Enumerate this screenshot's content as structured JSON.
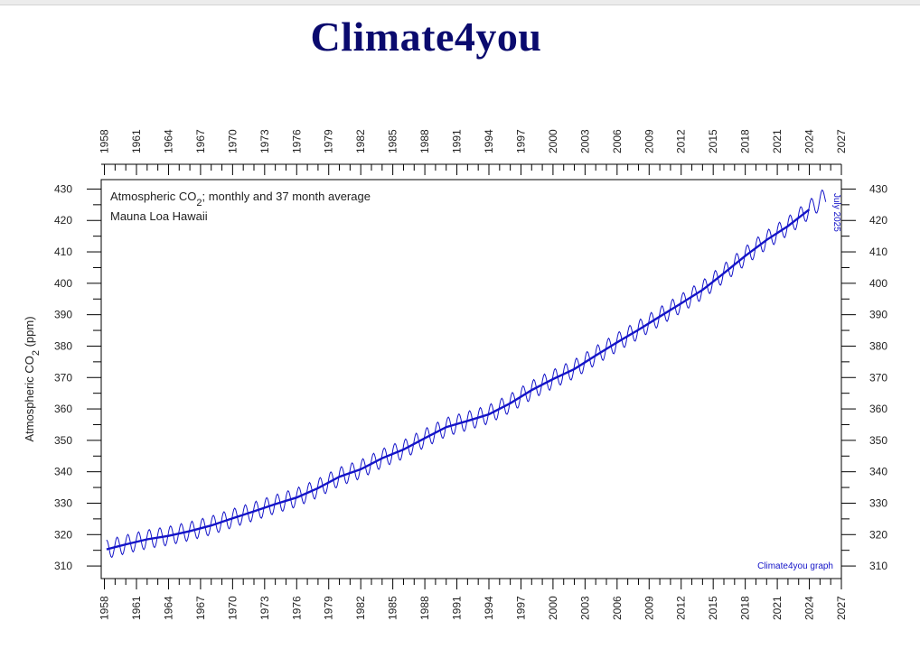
{
  "page": {
    "site_title": "Climate4you"
  },
  "colors": {
    "series": "#1414c8",
    "title": "#0a0a6e",
    "axis": "#000000"
  },
  "chart_data": {
    "type": "line",
    "title_line1": "Atmospheric CO",
    "title_subscript": "2",
    "title_line1_rest": "; monthly and 37 month average",
    "title_line2": "Mauna Loa Hawaii",
    "ylabel_main": "Atmospheric CO",
    "ylabel_sub": "2",
    "ylabel_unit": " (ppm)",
    "date_label": "July 2025",
    "credit": "Climate4you graph",
    "xlim": [
      1957.7,
      2027
    ],
    "ylim": [
      306,
      433
    ],
    "x_ticks": [
      1958,
      1961,
      1964,
      1967,
      1970,
      1973,
      1976,
      1979,
      1982,
      1985,
      1988,
      1991,
      1994,
      1997,
      2000,
      2003,
      2006,
      2009,
      2012,
      2015,
      2018,
      2021,
      2024,
      2027
    ],
    "y_ticks": [
      310,
      320,
      330,
      340,
      350,
      360,
      370,
      380,
      390,
      400,
      410,
      420,
      430
    ],
    "series": [
      {
        "name": "37 month average",
        "x": [
          1958.2,
          1960,
          1962,
          1964,
          1966,
          1968,
          1970,
          1972,
          1974,
          1976,
          1978,
          1980,
          1982,
          1984,
          1986,
          1988,
          1990,
          1992,
          1994,
          1996,
          1998,
          2000,
          2002,
          2004,
          2006,
          2008,
          2010,
          2012,
          2014,
          2016,
          2018,
          2020,
          2022,
          2024
        ],
        "values": [
          315.3,
          316.9,
          318.5,
          319.6,
          321.1,
          322.9,
          325.2,
          327.4,
          329.7,
          331.8,
          334.8,
          338.4,
          340.8,
          344.3,
          347.1,
          350.7,
          354.2,
          356.2,
          358.3,
          361.8,
          366.0,
          369.5,
          372.7,
          377.0,
          381.2,
          385.2,
          389.4,
          393.6,
          397.9,
          403.2,
          408.7,
          413.8,
          418.2,
          423.5
        ]
      }
    ],
    "monthly_note": "monthly values oscillate about the 37 month average with a seasonal amplitude of roughly 3 ppm, ending near 430 ppm in July 2025"
  }
}
